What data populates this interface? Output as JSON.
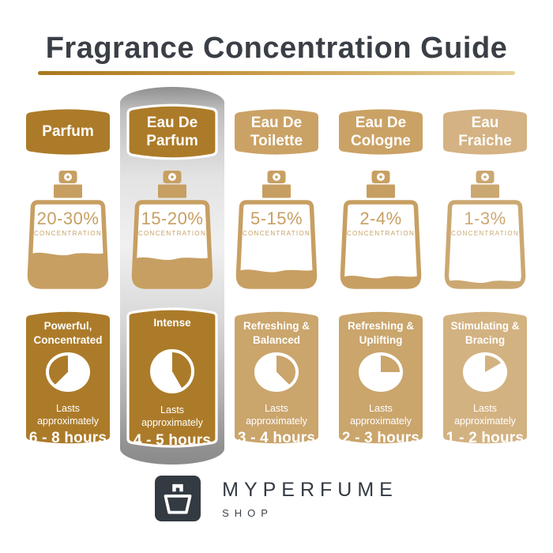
{
  "title": "Fragrance Concentration Guide",
  "concentration_label": "CONCENTRATION",
  "accent": {
    "title_color": "#3A3F46",
    "rule_gradient_start": "#A8781F",
    "rule_gradient_end": "#E7D09B",
    "highlight_panel_top": "#8F8F8F",
    "highlight_panel_mid": "#F0F0F0",
    "highlight_panel_bottom": "#8A8A8A",
    "logo_color": "#343A42"
  },
  "columns": [
    {
      "id": "parfum",
      "banner_line1": "Parfum",
      "banner_line2": "",
      "concentration": "20-30%",
      "fill_level": 0.42,
      "char_line1": "Powerful,",
      "char_line2": "Concentrated",
      "lasts_line1": "Lasts",
      "lasts_line2": "approximately",
      "duration": "6 - 8 hours",
      "clock": {
        "gold_start": 225,
        "gold_end": 360
      },
      "highlighted": false,
      "colors": {
        "banner": "#AC7B29",
        "bottle": "#C79F62",
        "card": "#AC7B29"
      }
    },
    {
      "id": "eau-de-parfum",
      "banner_line1": "Eau De",
      "banner_line2": "Parfum",
      "concentration": "15-20%",
      "fill_level": 0.36,
      "char_line1": "Intense",
      "char_line2": "",
      "lasts_line1": "Lasts",
      "lasts_line2": "approximately",
      "duration": "4 - 5 hours",
      "clock": {
        "gold_start": 0,
        "gold_end": 150
      },
      "highlighted": true,
      "colors": {
        "banner": "#AC7B29",
        "bottle": "#C79F62",
        "card": "#AC7B29"
      }
    },
    {
      "id": "eau-de-toilette",
      "banner_line1": "Eau De",
      "banner_line2": "Toilette",
      "concentration": "5-15%",
      "fill_level": 0.2,
      "char_line1": "Refreshing &",
      "char_line2": "Balanced",
      "lasts_line1": "Lasts",
      "lasts_line2": "approximately",
      "duration": "3 - 4 hours",
      "clock": {
        "gold_start": 0,
        "gold_end": 135
      },
      "highlighted": false,
      "colors": {
        "banner": "#CBA265",
        "bottle": "#C79F62",
        "card": "#CAA56C"
      }
    },
    {
      "id": "eau-de-cologne",
      "banner_line1": "Eau De",
      "banner_line2": "Cologne",
      "concentration": "2-4%",
      "fill_level": 0.12,
      "char_line1": "Refreshing &",
      "char_line2": "Uplifting",
      "lasts_line1": "Lasts",
      "lasts_line2": "approximately",
      "duration": "2 - 3 hours",
      "clock": {
        "gold_start": 0,
        "gold_end": 90
      },
      "highlighted": false,
      "colors": {
        "banner": "#CBA265",
        "bottle": "#C79F62",
        "card": "#CAA56C"
      }
    },
    {
      "id": "eau-fraiche",
      "banner_line1": "Eau",
      "banner_line2": "Fraiche",
      "concentration": "1-3%",
      "fill_level": 0.06,
      "char_line1": "Stimulating &",
      "char_line2": "Bracing",
      "lasts_line1": "Lasts",
      "lasts_line2": "approximately",
      "duration": "1 - 2 hours",
      "clock": {
        "gold_start": 0,
        "gold_end": 60
      },
      "highlighted": false,
      "colors": {
        "banner": "#D4B283",
        "bottle": "#CBA872",
        "card": "#D3B281"
      }
    }
  ],
  "footer": {
    "brand": "MYPERFUME",
    "sub": "SHOP"
  }
}
